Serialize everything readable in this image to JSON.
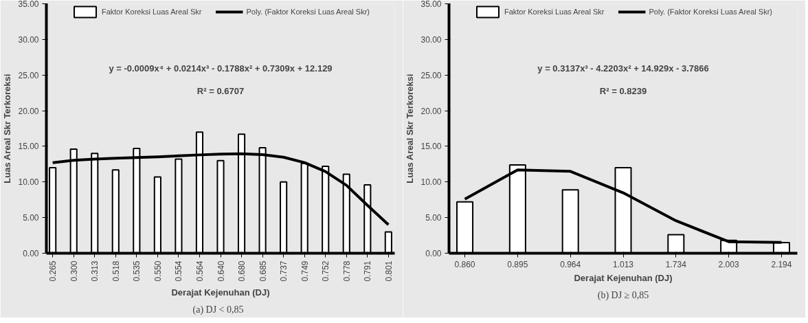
{
  "chart_data": [
    {
      "type": "bar",
      "categories": [
        "0.265",
        "0.300",
        "0.313",
        "0.518",
        "0.535",
        "0.550",
        "0.554",
        "0.564",
        "0.640",
        "0.680",
        "0.685",
        "0.737",
        "0.749",
        "0.752",
        "0.778",
        "0.791",
        "0.801"
      ],
      "xlabel": "Derajat Kejenuhan (DJ)",
      "ylabel": "Luas Areal Skr Terkoreksi",
      "ylim": [
        0,
        35
      ],
      "yticks": [
        {
          "value": 0,
          "label": "0.00"
        },
        {
          "value": 5,
          "label": "5.00"
        },
        {
          "value": 10,
          "label": "10.00"
        },
        {
          "value": 15,
          "label": "15.00"
        },
        {
          "value": 20,
          "label": "20.00"
        },
        {
          "value": 25,
          "label": "25.00"
        },
        {
          "value": 30,
          "label": "30.00"
        },
        {
          "value": 35,
          "label": "35.00"
        }
      ],
      "grid": false,
      "legend": "top",
      "series": [
        {
          "name": "Faktor Koreksi Luas Areal Skr",
          "color": "#ffffff",
          "values": [
            12.0,
            14.6,
            14.0,
            11.7,
            14.7,
            10.7,
            13.2,
            17.0,
            13.0,
            16.7,
            14.8,
            10.0,
            12.6,
            12.2,
            11.1,
            9.6,
            3.0
          ]
        },
        {
          "name": "Poly. (Faktor Koreksi Luas Areal Skr)",
          "type": "line",
          "color": "#000000",
          "values": [
            12.7,
            13.03,
            13.22,
            13.33,
            13.43,
            13.53,
            13.66,
            13.8,
            13.92,
            13.96,
            13.84,
            13.47,
            12.72,
            11.46,
            9.53,
            6.72,
            4.0
          ]
        }
      ],
      "annotations": [
        "y = -0.0009x⁴ + 0.0214x³ - 0.1788x² + 0.7309x + 12.129",
        "R² = 0.6707",
        "(a)   DJ < 0,85"
      ]
    },
    {
      "type": "bar",
      "categories": [
        "0.860",
        "0.895",
        "0.964",
        "1.013",
        "1.734",
        "2.003",
        "2.194"
      ],
      "xlabel": "Derajat Kejenuhan (DJ)",
      "ylabel": "Luas Areal Skr Terkoreksi",
      "ylim": [
        0,
        35
      ],
      "yticks": [
        {
          "value": 0,
          "label": "0.00"
        },
        {
          "value": 5,
          "label": "5.00"
        },
        {
          "value": 10,
          "label": "10.00"
        },
        {
          "value": 15,
          "label": "15.00"
        },
        {
          "value": 20,
          "label": "20.00"
        },
        {
          "value": 25,
          "label": "25.00"
        },
        {
          "value": 30,
          "label": "30.00"
        },
        {
          "value": 35,
          "label": "35.00"
        }
      ],
      "grid": false,
      "legend": "top",
      "series": [
        {
          "name": "Faktor Koreksi Luas Areal Skr",
          "color": "#ffffff",
          "values": [
            7.2,
            12.4,
            8.9,
            12.0,
            2.6,
            1.8,
            1.5
          ]
        },
        {
          "name": "Poly. (Faktor Koreksi Luas Areal Skr)",
          "type": "line",
          "color": "#000000",
          "values": [
            7.6,
            11.7,
            11.49,
            8.48,
            4.56,
            1.62,
            1.53
          ]
        }
      ],
      "annotations": [
        "y = 0.3137x³ - 4.2203x² + 14.929x - 3.7866",
        "R² = 0.8239",
        "(b) DJ ≥ 0,85"
      ]
    }
  ]
}
